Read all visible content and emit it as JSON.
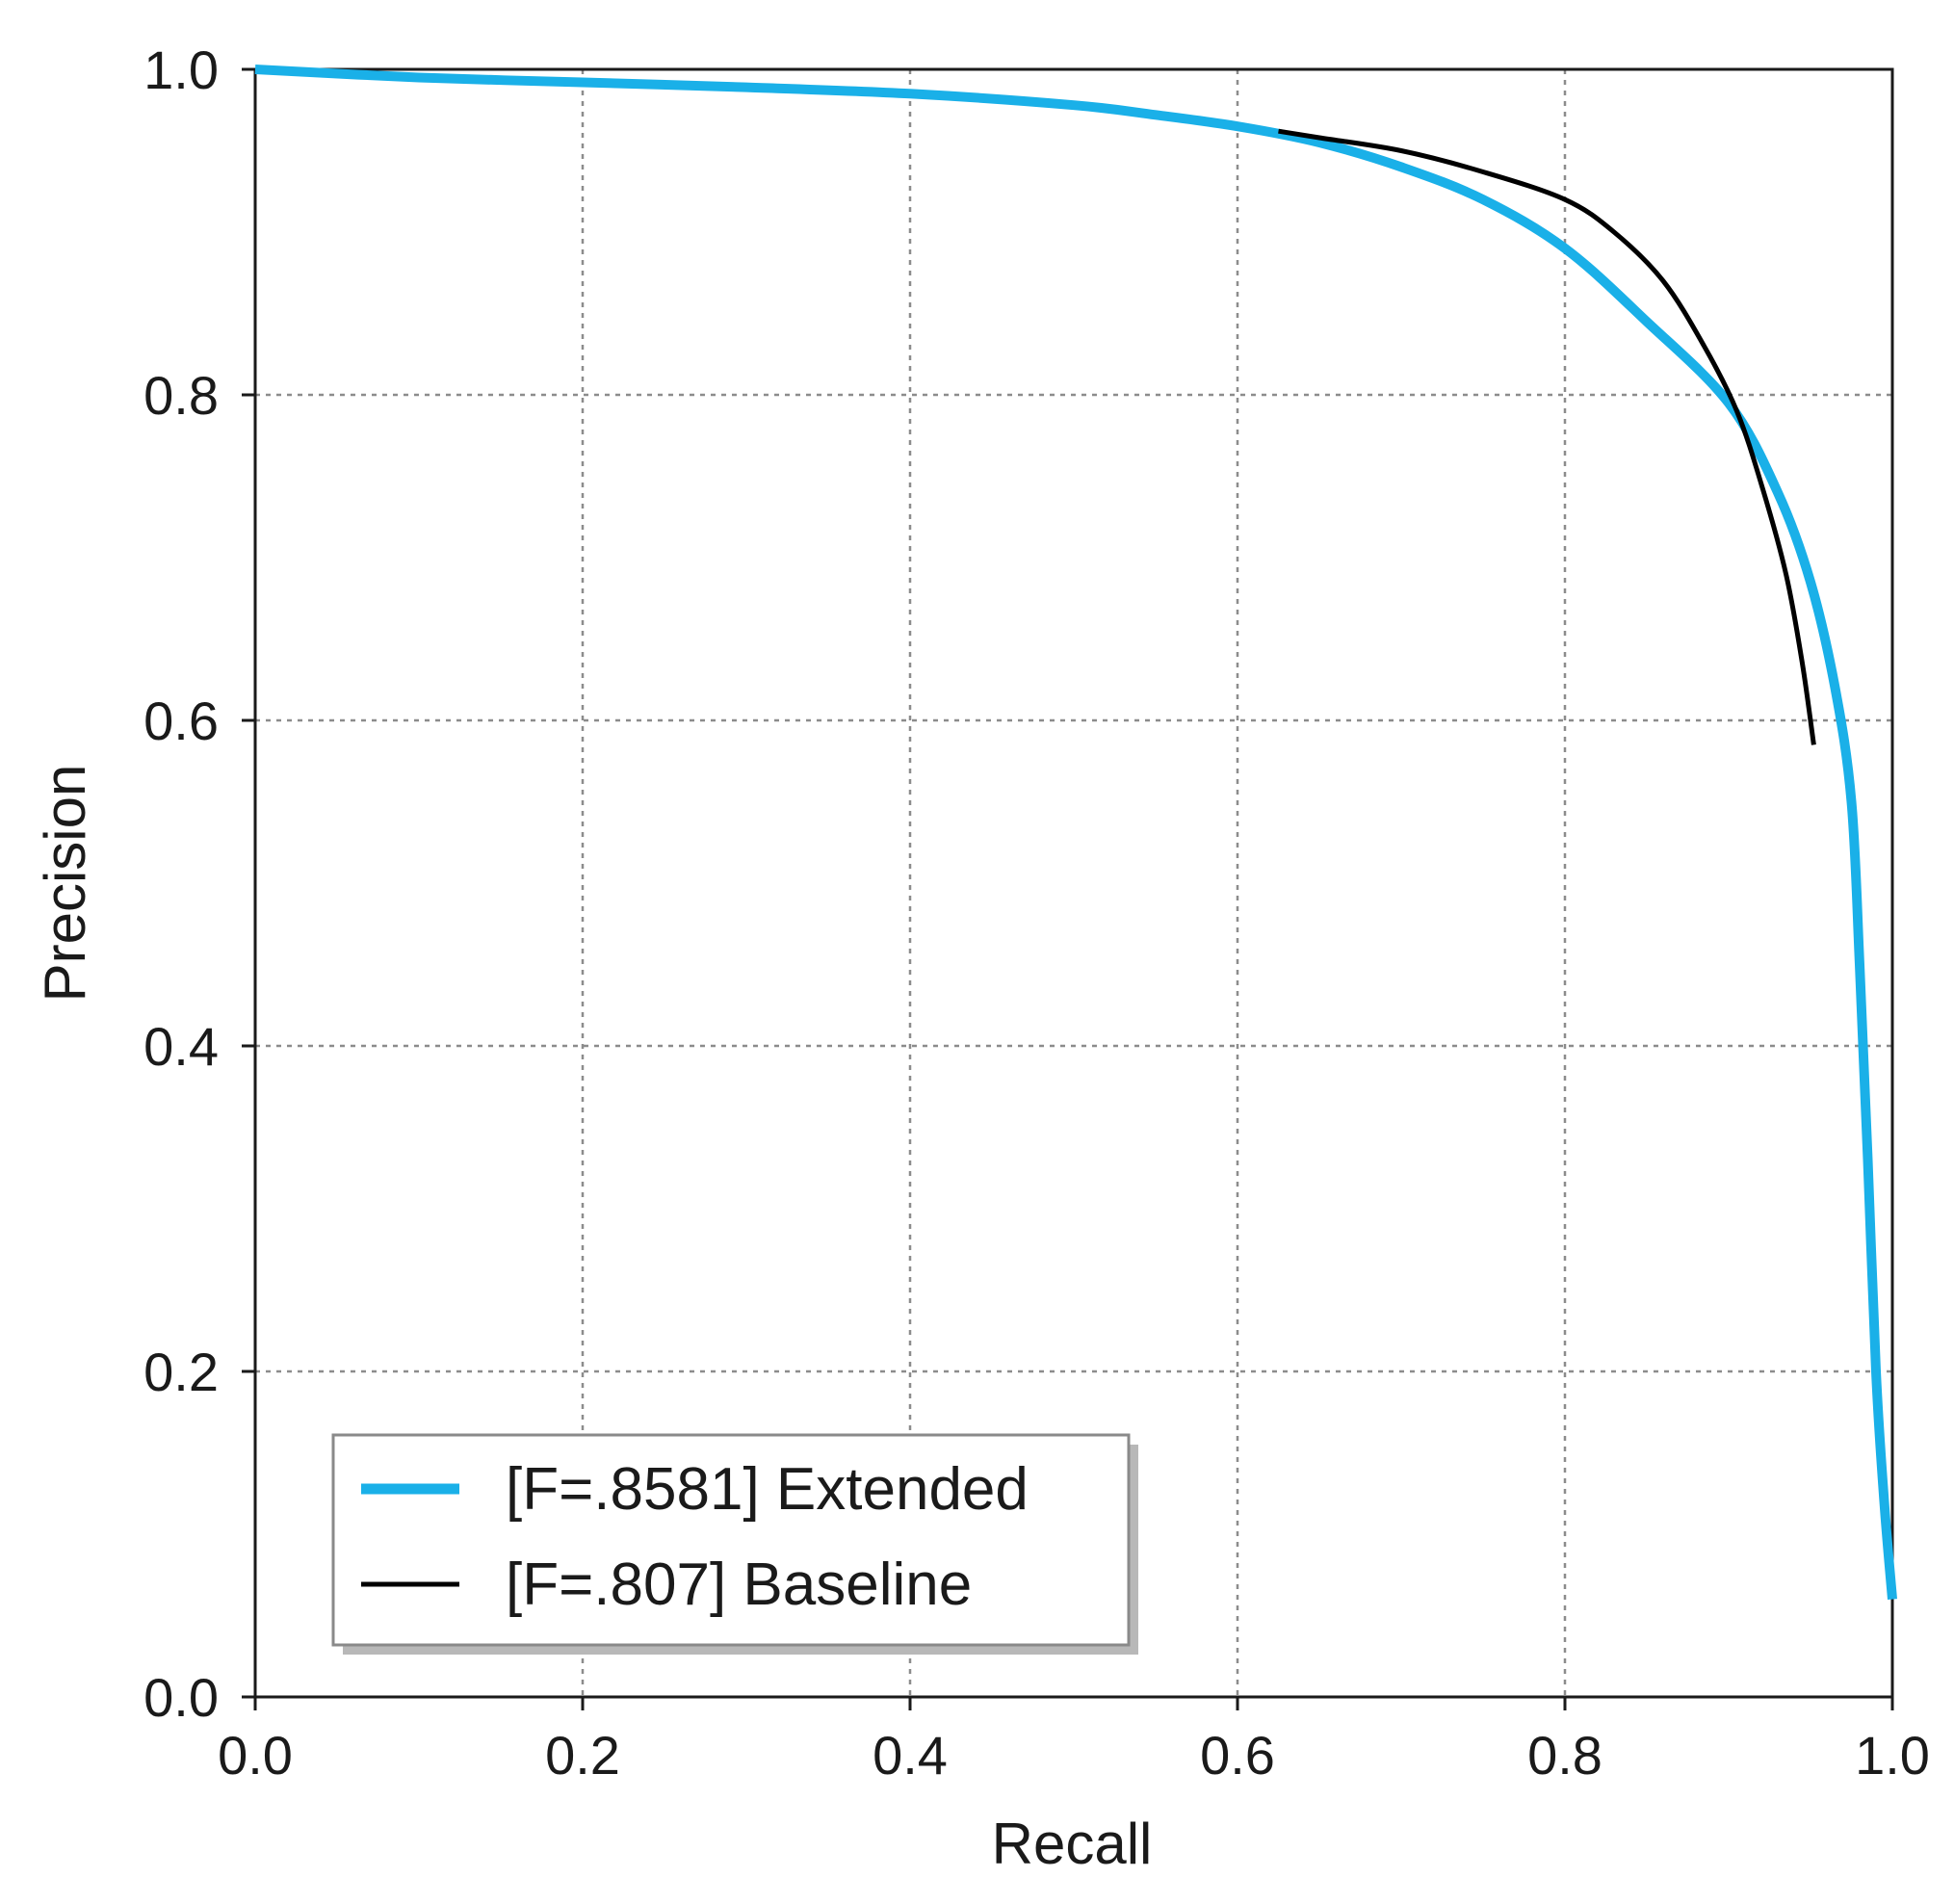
{
  "chart_data": {
    "type": "line",
    "title": "",
    "xlabel": "Recall",
    "ylabel": "Precision",
    "xlim": [
      0.0,
      1.0
    ],
    "ylim": [
      0.0,
      1.0
    ],
    "x_ticks": [
      "0.0",
      "0.2",
      "0.4",
      "0.6",
      "0.8",
      "1.0"
    ],
    "y_ticks": [
      "0.0",
      "0.2",
      "0.4",
      "0.6",
      "0.8",
      "1.0"
    ],
    "grid": true,
    "legend_position": "bottom-left",
    "series": [
      {
        "name": "[F=.8581] Extended",
        "color": "#1ab0e8",
        "x": [
          0.0,
          0.1,
          0.2,
          0.3,
          0.4,
          0.5,
          0.55,
          0.6,
          0.65,
          0.7,
          0.75,
          0.8,
          0.85,
          0.9,
          0.93,
          0.95,
          0.965,
          0.975,
          0.98,
          0.985,
          0.99,
          0.995,
          1.0
        ],
        "y": [
          1.0,
          0.995,
          0.992,
          0.989,
          0.985,
          0.978,
          0.972,
          0.965,
          0.955,
          0.94,
          0.92,
          0.89,
          0.845,
          0.795,
          0.74,
          0.685,
          0.62,
          0.55,
          0.45,
          0.33,
          0.2,
          0.12,
          0.06
        ]
      },
      {
        "name": "[F=.807] Baseline",
        "color": "#000000",
        "x": [
          0.625,
          0.65,
          0.7,
          0.75,
          0.8,
          0.83,
          0.86,
          0.885,
          0.905,
          0.92,
          0.935,
          0.945,
          0.952
        ],
        "y": [
          0.962,
          0.958,
          0.95,
          0.937,
          0.92,
          0.9,
          0.87,
          0.83,
          0.79,
          0.745,
          0.69,
          0.635,
          0.585
        ]
      }
    ]
  }
}
